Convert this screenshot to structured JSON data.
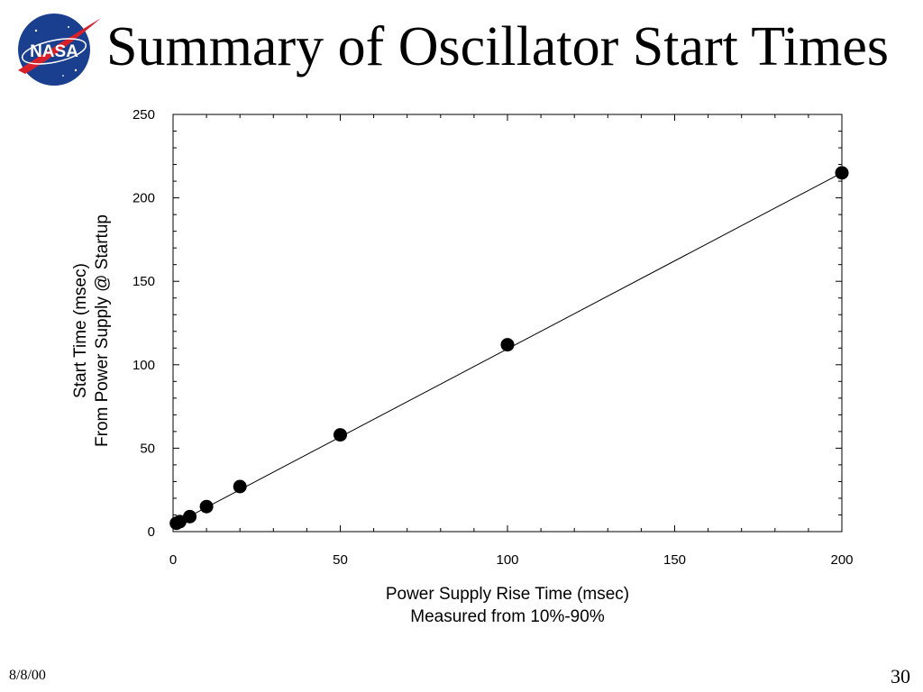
{
  "slide": {
    "title": "Summary of Oscillator Start Times",
    "date": "8/8/00",
    "page_number": "30",
    "logo_text": "NASA"
  },
  "colors": {
    "logo_blue": "#1b3f8f",
    "logo_red": "#d8202a",
    "ink": "#000000"
  },
  "chart_data": {
    "type": "scatter",
    "xlabel_lines": [
      "Power Supply Rise Time (msec)",
      "Measured from 10%-90%"
    ],
    "ylabel_lines": [
      "Start Time (msec)",
      "From Power Supply @ Startup"
    ],
    "xlim": [
      0,
      200
    ],
    "ylim": [
      0,
      250
    ],
    "x_ticks": [
      "0",
      "50",
      "100",
      "150",
      "200"
    ],
    "y_ticks": [
      "0",
      "50",
      "100",
      "150",
      "200",
      "250"
    ],
    "grid": false,
    "legend": "none",
    "fit_line": {
      "x": [
        0,
        200
      ],
      "y": [
        4,
        215
      ]
    },
    "series": [
      {
        "x": [
          1,
          2,
          5,
          10,
          20,
          50,
          100,
          200
        ],
        "y": [
          5,
          6,
          9,
          15,
          27,
          58,
          112,
          215
        ]
      }
    ]
  }
}
